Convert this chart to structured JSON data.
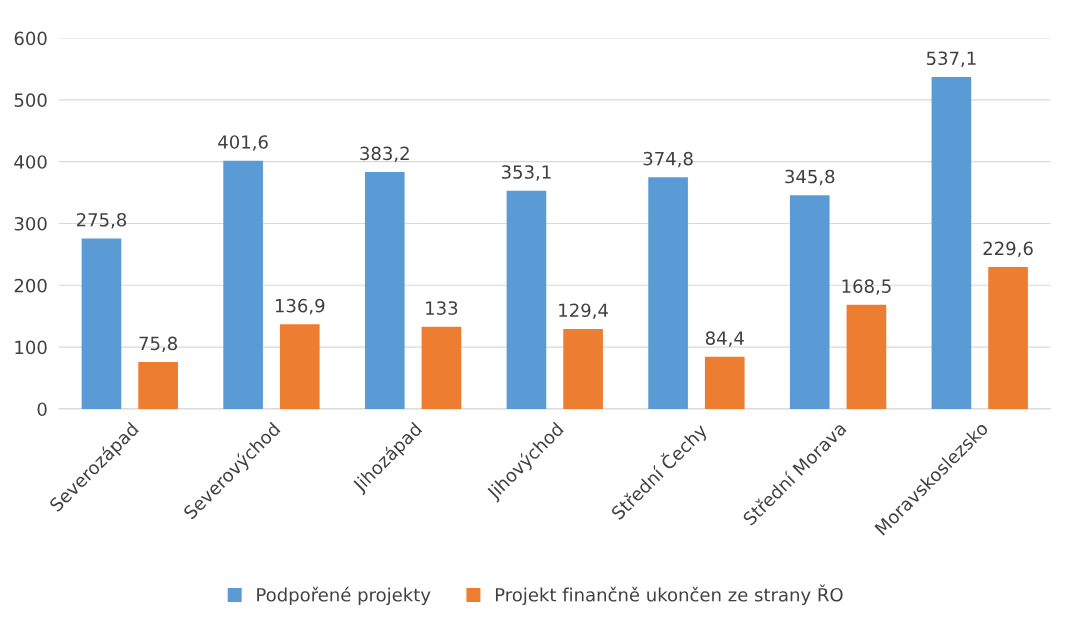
{
  "chart_data": {
    "type": "bar",
    "categories": [
      "Severozápad",
      "Severovýchod",
      "Jihozápad",
      "Jihovýchod",
      "Střední Čechy",
      "Střední Morava",
      "Moravskoslezsko"
    ],
    "series": [
      {
        "name": "Podpořené projekty",
        "color": "#5b9bd5",
        "values": [
          275.8,
          401.6,
          383.2,
          353.1,
          374.8,
          345.8,
          537.1
        ],
        "value_labels": [
          "275,8",
          "401,6",
          "383,2",
          "353,1",
          "374,8",
          "345,8",
          "537,1"
        ]
      },
      {
        "name": "Projekt finančně ukončen ze strany ŘO",
        "color": "#ed7d31",
        "values": [
          75.8,
          136.9,
          133,
          129.4,
          84.4,
          168.5,
          229.6
        ],
        "value_labels": [
          "75,8",
          "136,9",
          "133",
          "129,4",
          "84,4",
          "168,5",
          "229,6"
        ]
      }
    ],
    "ylim": [
      0,
      600
    ],
    "yticks": [
      0,
      100,
      200,
      300,
      400,
      500,
      600
    ],
    "grid": "y",
    "legend": "bottom"
  }
}
